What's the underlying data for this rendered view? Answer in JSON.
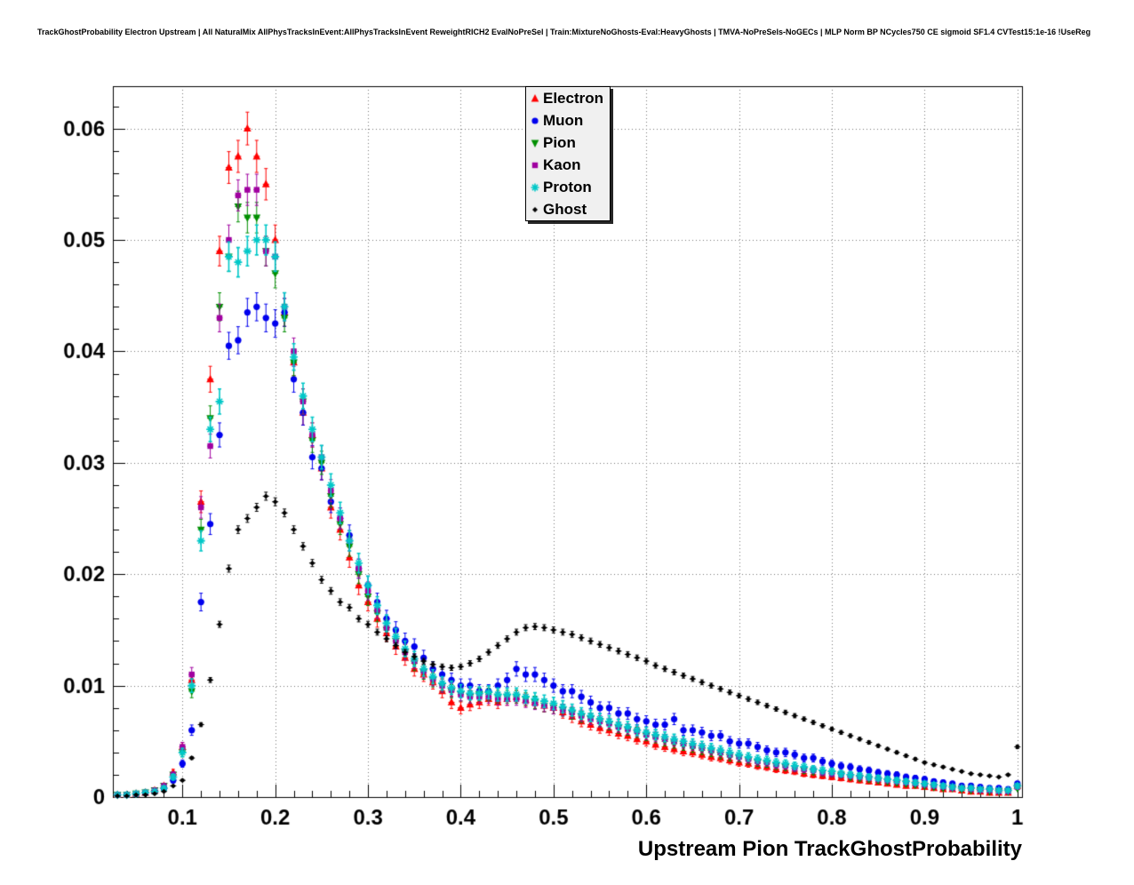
{
  "header": {
    "title": "TrackGhostProbability Electron Upstream | All NaturalMix AllPhysTracksInEvent:AllPhysTracksInEvent ReweightRICH2 EvalNoPreSel | Train:MixtureNoGhosts-Eval:HeavyGhosts | TMVA-NoPreSels-NoGECs | MLP Norm BP NCycles750 CE sigmoid SF1.4 CVTest15:1e-16 !UseReg"
  },
  "chart_data": {
    "type": "scatter",
    "title": "TrackGhostProbability Electron Upstream",
    "xlabel": "Upstream Pion TrackGhostProbability",
    "ylabel": "",
    "xlim": [
      0.025,
      1.005
    ],
    "ylim": [
      0,
      0.0638
    ],
    "grid": true,
    "grid_style": "dotted",
    "legend_position": "top-center",
    "xticks": {
      "values": [
        0.1,
        0.2,
        0.3,
        0.4,
        0.5,
        0.6,
        0.7,
        0.8,
        0.9,
        1
      ],
      "labels": [
        "0.1",
        "0.2",
        "0.3",
        "0.4",
        "0.5",
        "0.6",
        "0.7",
        "0.8",
        "0.9",
        "1"
      ]
    },
    "yticks": {
      "values": [
        0,
        0.01,
        0.02,
        0.03,
        0.04,
        0.05,
        0.06
      ],
      "labels": [
        "0",
        "0.01",
        "0.02",
        "0.03",
        "0.04",
        "0.05",
        "0.06"
      ]
    },
    "x": {
      "start": 0.03,
      "step": 0.01,
      "count": 98
    },
    "series": [
      {
        "name": "Electron",
        "color": "#ff0000",
        "marker": "triangle-up",
        "values": [
          0.0002,
          0.0002,
          0.0003,
          0.0004,
          0.0006,
          0.001,
          0.0022,
          0.0045,
          0.0105,
          0.0265,
          0.0375,
          0.049,
          0.0565,
          0.0575,
          0.06,
          0.0575,
          0.055,
          0.05,
          0.0435,
          0.039,
          0.0345,
          0.0325,
          0.0295,
          0.026,
          0.024,
          0.0215,
          0.019,
          0.0175,
          0.016,
          0.0147,
          0.0135,
          0.0125,
          0.0115,
          0.011,
          0.0103,
          0.0095,
          0.0085,
          0.008,
          0.0083,
          0.0085,
          0.0088,
          0.0085,
          0.0088,
          0.009,
          0.0087,
          0.0085,
          0.0082,
          0.008,
          0.0076,
          0.0072,
          0.0068,
          0.0065,
          0.0062,
          0.006,
          0.0057,
          0.0055,
          0.0052,
          0.005,
          0.0047,
          0.0045,
          0.0043,
          0.0041,
          0.004,
          0.0038,
          0.0036,
          0.0035,
          0.0033,
          0.0031,
          0.003,
          0.0028,
          0.0027,
          0.0025,
          0.0024,
          0.0023,
          0.0021,
          0.002,
          0.0019,
          0.0018,
          0.0017,
          0.0016,
          0.0015,
          0.0014,
          0.0013,
          0.0012,
          0.0011,
          0.001,
          0.001,
          0.0009,
          0.0008,
          0.0007,
          0.0007,
          0.0006,
          0.0005,
          0.0005,
          0.0004,
          0.0004,
          0.0004,
          0.001
        ]
      },
      {
        "name": "Muon",
        "color": "#0000ee",
        "marker": "circle",
        "values": [
          0.0002,
          0.0002,
          0.0003,
          0.0004,
          0.0005,
          0.0008,
          0.0015,
          0.003,
          0.006,
          0.0175,
          0.0245,
          0.0325,
          0.0405,
          0.041,
          0.0435,
          0.044,
          0.043,
          0.0425,
          0.0435,
          0.0375,
          0.0345,
          0.0305,
          0.0295,
          0.0265,
          0.025,
          0.0235,
          0.0205,
          0.019,
          0.0175,
          0.016,
          0.015,
          0.014,
          0.0135,
          0.0125,
          0.0115,
          0.011,
          0.0105,
          0.01,
          0.01,
          0.0095,
          0.0095,
          0.01,
          0.0105,
          0.0115,
          0.011,
          0.011,
          0.0105,
          0.01,
          0.0095,
          0.0095,
          0.009,
          0.0085,
          0.008,
          0.008,
          0.0075,
          0.0075,
          0.007,
          0.0068,
          0.0065,
          0.0065,
          0.007,
          0.006,
          0.006,
          0.0058,
          0.0055,
          0.0055,
          0.005,
          0.0048,
          0.0048,
          0.0045,
          0.0042,
          0.004,
          0.004,
          0.0038,
          0.0035,
          0.0035,
          0.0032,
          0.003,
          0.0028,
          0.0027,
          0.0025,
          0.0024,
          0.0022,
          0.0021,
          0.002,
          0.0018,
          0.0017,
          0.0016,
          0.0014,
          0.0013,
          0.0012,
          0.001,
          0.001,
          0.0009,
          0.0008,
          0.0008,
          0.0007,
          0.0012
        ]
      },
      {
        "name": "Pion",
        "color": "#008f00",
        "marker": "triangle-down",
        "values": [
          0.0002,
          0.0002,
          0.0003,
          0.0004,
          0.0006,
          0.001,
          0.002,
          0.004,
          0.0095,
          0.024,
          0.034,
          0.044,
          0.0485,
          0.053,
          0.052,
          0.052,
          0.049,
          0.047,
          0.043,
          0.039,
          0.0355,
          0.032,
          0.03,
          0.027,
          0.0245,
          0.0225,
          0.02,
          0.018,
          0.0165,
          0.015,
          0.014,
          0.013,
          0.012,
          0.0112,
          0.0105,
          0.01,
          0.0095,
          0.0092,
          0.009,
          0.0092,
          0.0092,
          0.009,
          0.009,
          0.009,
          0.0088,
          0.0085,
          0.0082,
          0.008,
          0.0078,
          0.0075,
          0.0072,
          0.007,
          0.0068,
          0.0065,
          0.0062,
          0.006,
          0.0058,
          0.0055,
          0.0053,
          0.005,
          0.0048,
          0.0046,
          0.0044,
          0.0042,
          0.004,
          0.0038,
          0.0036,
          0.0035,
          0.0033,
          0.0031,
          0.003,
          0.0028,
          0.0027,
          0.0026,
          0.0024,
          0.0023,
          0.0022,
          0.0021,
          0.002,
          0.0018,
          0.0017,
          0.0016,
          0.0015,
          0.0014,
          0.0013,
          0.0012,
          0.0011,
          0.001,
          0.0009,
          0.0008,
          0.0008,
          0.0007,
          0.0006,
          0.0006,
          0.0005,
          0.0005,
          0.0005,
          0.0008
        ]
      },
      {
        "name": "Kaon",
        "color": "#a000a0",
        "marker": "square",
        "values": [
          0.0002,
          0.0002,
          0.0003,
          0.0004,
          0.0006,
          0.001,
          0.002,
          0.0045,
          0.011,
          0.026,
          0.0315,
          0.043,
          0.05,
          0.054,
          0.0545,
          0.0545,
          0.049,
          0.0485,
          0.044,
          0.04,
          0.0355,
          0.0325,
          0.0305,
          0.0275,
          0.025,
          0.023,
          0.0205,
          0.0185,
          0.0168,
          0.0152,
          0.014,
          0.013,
          0.0122,
          0.0113,
          0.0106,
          0.01,
          0.0096,
          0.0092,
          0.009,
          0.009,
          0.009,
          0.0088,
          0.0088,
          0.0088,
          0.0086,
          0.0084,
          0.0082,
          0.008,
          0.0078,
          0.0076,
          0.0073,
          0.007,
          0.0068,
          0.0066,
          0.0063,
          0.0061,
          0.0059,
          0.0056,
          0.0054,
          0.0052,
          0.005,
          0.0048,
          0.0046,
          0.0044,
          0.0042,
          0.004,
          0.0038,
          0.0036,
          0.0034,
          0.0032,
          0.0031,
          0.0029,
          0.0028,
          0.0026,
          0.0025,
          0.0024,
          0.0022,
          0.0021,
          0.002,
          0.0019,
          0.0018,
          0.0017,
          0.0016,
          0.0015,
          0.0014,
          0.0013,
          0.0012,
          0.0011,
          0.001,
          0.0009,
          0.0008,
          0.0008,
          0.0007,
          0.0006,
          0.0006,
          0.0005,
          0.0005,
          0.0009
        ]
      },
      {
        "name": "Proton",
        "color": "#00c8c8",
        "marker": "star",
        "values": [
          0.0002,
          0.0002,
          0.0003,
          0.0004,
          0.0005,
          0.0008,
          0.0018,
          0.004,
          0.01,
          0.023,
          0.033,
          0.0355,
          0.0485,
          0.048,
          0.049,
          0.05,
          0.05,
          0.0485,
          0.044,
          0.0395,
          0.036,
          0.033,
          0.0305,
          0.028,
          0.0255,
          0.023,
          0.021,
          0.019,
          0.0172,
          0.0156,
          0.0144,
          0.0133,
          0.0124,
          0.0115,
          0.0108,
          0.0102,
          0.0098,
          0.0095,
          0.0093,
          0.0093,
          0.0094,
          0.0092,
          0.0092,
          0.0092,
          0.009,
          0.0088,
          0.0086,
          0.0084,
          0.0081,
          0.0078,
          0.0075,
          0.0073,
          0.007,
          0.0068,
          0.0065,
          0.0063,
          0.006,
          0.0058,
          0.0056,
          0.0054,
          0.0052,
          0.005,
          0.0048,
          0.0046,
          0.0044,
          0.0042,
          0.004,
          0.0038,
          0.0036,
          0.0034,
          0.0033,
          0.0031,
          0.003,
          0.0028,
          0.0027,
          0.0025,
          0.0024,
          0.0023,
          0.0021,
          0.002,
          0.0019,
          0.0018,
          0.0017,
          0.0016,
          0.0015,
          0.0014,
          0.0013,
          0.0012,
          0.0011,
          0.001,
          0.0009,
          0.0008,
          0.0008,
          0.0007,
          0.0007,
          0.0006,
          0.0006,
          0.001
        ]
      },
      {
        "name": "Ghost",
        "color": "#000000",
        "marker": "diamond",
        "values": [
          0.0001,
          0.0001,
          0.0002,
          0.0002,
          0.0003,
          0.0005,
          0.001,
          0.0015,
          0.0035,
          0.0065,
          0.0105,
          0.0155,
          0.0205,
          0.024,
          0.025,
          0.026,
          0.027,
          0.0265,
          0.0255,
          0.024,
          0.0225,
          0.021,
          0.0195,
          0.0185,
          0.0175,
          0.017,
          0.016,
          0.0155,
          0.0148,
          0.0142,
          0.0136,
          0.013,
          0.0126,
          0.0122,
          0.0119,
          0.0117,
          0.0116,
          0.0117,
          0.012,
          0.0124,
          0.013,
          0.0136,
          0.0142,
          0.0148,
          0.0152,
          0.0153,
          0.0152,
          0.015,
          0.0148,
          0.0146,
          0.0143,
          0.014,
          0.0137,
          0.0134,
          0.0131,
          0.0128,
          0.0125,
          0.0122,
          0.0118,
          0.0115,
          0.0112,
          0.0109,
          0.0106,
          0.0103,
          0.01,
          0.0097,
          0.0094,
          0.0091,
          0.0088,
          0.0085,
          0.0082,
          0.0079,
          0.0076,
          0.0073,
          0.007,
          0.0067,
          0.0064,
          0.0061,
          0.0058,
          0.0055,
          0.0052,
          0.0049,
          0.0046,
          0.0043,
          0.004,
          0.0037,
          0.0034,
          0.0031,
          0.0029,
          0.0027,
          0.0025,
          0.0023,
          0.0021,
          0.002,
          0.0019,
          0.0018,
          0.002,
          0.0045
        ]
      }
    ]
  }
}
